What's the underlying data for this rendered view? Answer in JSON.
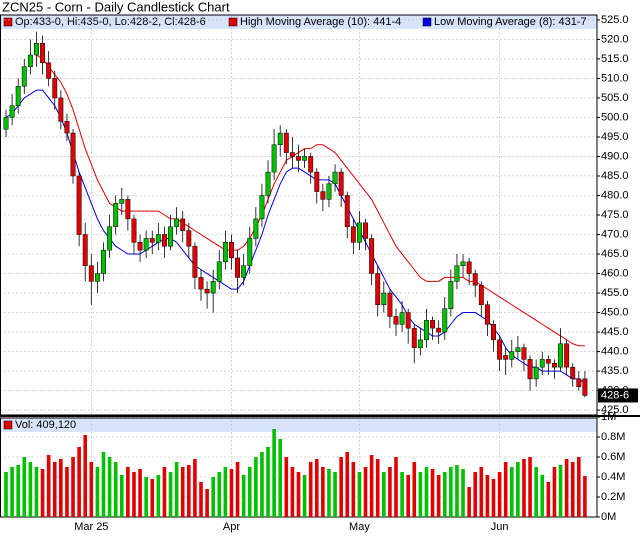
{
  "chart_data": {
    "type": "candlestick",
    "title": "ZCN25 - Corn - Daily Candlestick Chart",
    "ohlc_label": "Op:433-0, Hi:435-0, Lo:428-2, Cl:428-6",
    "last_label": "428-6",
    "up_color": "#00c000",
    "down_color": "#e00000",
    "grid": true,
    "categories": [
      null,
      null,
      null,
      null,
      null,
      null,
      null,
      null,
      null,
      null,
      null,
      null,
      null,
      null,
      "Mar 25",
      null,
      null,
      null,
      null,
      null,
      null,
      null,
      null,
      null,
      null,
      null,
      null,
      null,
      null,
      null,
      null,
      null,
      null,
      null,
      null,
      null,
      null,
      "Apr",
      null,
      null,
      null,
      null,
      null,
      null,
      null,
      null,
      null,
      null,
      null,
      null,
      null,
      null,
      null,
      null,
      null,
      null,
      null,
      null,
      "May",
      null,
      null,
      null,
      null,
      null,
      null,
      null,
      null,
      null,
      null,
      null,
      null,
      null,
      null,
      null,
      null,
      null,
      null,
      null,
      null,
      null,
      null,
      "Jun",
      null,
      null,
      null,
      null,
      null,
      null,
      null,
      null,
      null,
      null,
      null,
      null,
      null,
      null
    ],
    "candles": [
      [
        497,
        502,
        495,
        500
      ],
      [
        500,
        506,
        498,
        503
      ],
      [
        503,
        510,
        501,
        508
      ],
      [
        508,
        515,
        506,
        513
      ],
      [
        513,
        520,
        511,
        516
      ],
      [
        516,
        522,
        513,
        519
      ],
      [
        519,
        521,
        511,
        514
      ],
      [
        514,
        517,
        508,
        510
      ],
      [
        510,
        512,
        502,
        505
      ],
      [
        505,
        507,
        497,
        499
      ],
      [
        499,
        501,
        494,
        496
      ],
      [
        496,
        497,
        483,
        485
      ],
      [
        485,
        486,
        467,
        470
      ],
      [
        470,
        473,
        458,
        462
      ],
      [
        462,
        465,
        452,
        458
      ],
      [
        458,
        463,
        455,
        460
      ],
      [
        460,
        468,
        458,
        466
      ],
      [
        466,
        475,
        464,
        472
      ],
      [
        472,
        480,
        470,
        478
      ],
      [
        478,
        482,
        475,
        479
      ],
      [
        479,
        480,
        471,
        474
      ],
      [
        474,
        475,
        465,
        468
      ],
      [
        468,
        470,
        463,
        466
      ],
      [
        466,
        471,
        464,
        469
      ],
      [
        469,
        471,
        465,
        468
      ],
      [
        468,
        473,
        466,
        470
      ],
      [
        470,
        472,
        464,
        467
      ],
      [
        467,
        475,
        466,
        472
      ],
      [
        472,
        477,
        470,
        474
      ],
      [
        474,
        476,
        468,
        471
      ],
      [
        471,
        473,
        464,
        467
      ],
      [
        467,
        468,
        456,
        459
      ],
      [
        459,
        461,
        453,
        456
      ],
      [
        456,
        458,
        451,
        455
      ],
      [
        455,
        461,
        450,
        458
      ],
      [
        458,
        466,
        456,
        463
      ],
      [
        463,
        471,
        461,
        468
      ],
      [
        468,
        470,
        461,
        464
      ],
      [
        464,
        466,
        455,
        459
      ],
      [
        459,
        465,
        457,
        462
      ],
      [
        462,
        472,
        460,
        469
      ],
      [
        469,
        477,
        467,
        474
      ],
      [
        474,
        483,
        472,
        480
      ],
      [
        480,
        489,
        478,
        486
      ],
      [
        486,
        497,
        484,
        493
      ],
      [
        493,
        498,
        490,
        496
      ],
      [
        496,
        497,
        488,
        491
      ],
      [
        491,
        495,
        487,
        490
      ],
      [
        490,
        493,
        486,
        489
      ],
      [
        489,
        492,
        487,
        490
      ],
      [
        490,
        491,
        483,
        486
      ],
      [
        486,
        487,
        478,
        481
      ],
      [
        481,
        483,
        476,
        479
      ],
      [
        479,
        485,
        477,
        483
      ],
      [
        483,
        488,
        481,
        486
      ],
      [
        486,
        487,
        477,
        480
      ],
      [
        480,
        481,
        469,
        472
      ],
      [
        472,
        474,
        465,
        468
      ],
      [
        468,
        476,
        466,
        473
      ],
      [
        473,
        474,
        466,
        469
      ],
      [
        469,
        470,
        457,
        460
      ],
      [
        460,
        462,
        449,
        452
      ],
      [
        452,
        458,
        450,
        455
      ],
      [
        455,
        456,
        446,
        449
      ],
      [
        449,
        451,
        444,
        447
      ],
      [
        447,
        453,
        445,
        450
      ],
      [
        450,
        451,
        442,
        446
      ],
      [
        446,
        447,
        437,
        441
      ],
      [
        441,
        446,
        439,
        443
      ],
      [
        443,
        451,
        441,
        448
      ],
      [
        448,
        449,
        443,
        446
      ],
      [
        446,
        448,
        442,
        445
      ],
      [
        445,
        454,
        443,
        451
      ],
      [
        451,
        461,
        449,
        458
      ],
      [
        458,
        465,
        456,
        462
      ],
      [
        462,
        465,
        459,
        463
      ],
      [
        463,
        464,
        457,
        460
      ],
      [
        460,
        461,
        454,
        457
      ],
      [
        457,
        458,
        449,
        452
      ],
      [
        452,
        453,
        444,
        447
      ],
      [
        447,
        448,
        440,
        443
      ],
      [
        443,
        444,
        435,
        438
      ],
      [
        439,
        441,
        434,
        438
      ],
      [
        438,
        443,
        436,
        440
      ],
      [
        440,
        444,
        438,
        441
      ],
      [
        441,
        442,
        435,
        438
      ],
      [
        438,
        439,
        430,
        433
      ],
      [
        433,
        438,
        431,
        436
      ],
      [
        436,
        440,
        434,
        438
      ],
      [
        438,
        439,
        434,
        437
      ],
      [
        437,
        438,
        433,
        436
      ],
      [
        436,
        446,
        435,
        442
      ],
      [
        442,
        443,
        434,
        436
      ],
      [
        436,
        437,
        431,
        433
      ],
      [
        433,
        435,
        430,
        431
      ],
      [
        433,
        435,
        428.25,
        428.75
      ]
    ],
    "series": [
      {
        "name": "High Moving Average (10): 441-4",
        "color": "#e00000",
        "values": [
          null,
          null,
          null,
          null,
          null,
          516,
          515,
          513,
          511,
          509,
          506,
          502,
          497,
          492,
          488,
          484,
          481,
          478,
          477,
          476,
          476,
          476,
          476,
          476,
          476,
          476,
          475,
          474,
          474,
          473,
          472,
          471,
          470,
          469,
          468,
          467,
          466,
          466,
          466,
          467,
          469,
          472,
          475,
          479,
          483,
          486,
          489,
          490,
          491,
          492,
          492,
          493,
          493,
          492,
          491,
          489,
          487,
          485,
          483,
          481,
          479,
          476,
          473,
          470,
          467,
          465,
          463,
          461,
          459,
          458,
          458,
          458,
          459,
          459,
          459,
          459,
          458,
          458,
          457,
          456,
          455,
          454,
          453,
          452,
          451,
          450,
          449,
          448,
          447,
          446,
          445,
          444,
          443,
          442,
          441.5,
          441.5
        ]
      },
      {
        "name": "Low Moving Average (8): 431-7",
        "color": "#0000e0",
        "values": [
          500,
          501,
          503,
          505,
          506,
          507,
          507,
          505,
          503,
          500,
          496,
          491,
          486,
          482,
          478,
          474,
          471,
          469,
          467,
          466,
          465,
          465,
          465,
          466,
          467,
          468,
          469,
          469,
          468,
          466,
          464,
          462,
          461,
          460,
          459,
          458,
          457,
          456,
          456,
          458,
          462,
          466,
          470,
          475,
          479,
          483,
          486,
          487,
          487,
          486,
          485,
          484,
          484,
          484,
          483,
          480,
          477,
          474,
          471,
          468,
          465,
          462,
          459,
          456,
          454,
          452,
          449,
          447,
          446,
          445,
          444,
          444,
          445,
          447,
          449,
          450,
          450,
          450,
          449,
          448,
          446,
          444,
          441,
          439,
          438,
          437,
          436,
          436,
          435,
          435,
          435,
          435,
          434,
          433,
          433,
          431.875
        ]
      }
    ],
    "ylim": [
      424,
      526
    ],
    "yticks": [
      {
        "value": 425,
        "label": "425.0"
      },
      {
        "value": 430,
        "label": "430.0"
      },
      {
        "value": 435,
        "label": "435.0"
      },
      {
        "value": 440,
        "label": "440.0"
      },
      {
        "value": 445,
        "label": "445.0"
      },
      {
        "value": 450,
        "label": "450.0"
      },
      {
        "value": 455,
        "label": "455.0"
      },
      {
        "value": 460,
        "label": "460.0"
      },
      {
        "value": 465,
        "label": "465.0"
      },
      {
        "value": 470,
        "label": "470.0"
      },
      {
        "value": 475,
        "label": "475.0"
      },
      {
        "value": 480,
        "label": "480.0"
      },
      {
        "value": 485,
        "label": "485.0"
      },
      {
        "value": 490,
        "label": "490.0"
      },
      {
        "value": 495,
        "label": "495.0"
      },
      {
        "value": 500,
        "label": "500.0"
      },
      {
        "value": 505,
        "label": "505.0"
      },
      {
        "value": 510,
        "label": "510.0"
      },
      {
        "value": 515,
        "label": "515.0"
      },
      {
        "value": 520,
        "label": "520.0"
      },
      {
        "value": 525,
        "label": "525.0"
      }
    ],
    "volume": {
      "label": "Vol: 409,120",
      "ylim": [
        0,
        1.01
      ],
      "yticks": [
        {
          "value": 0,
          "label": "0M"
        },
        {
          "value": 0.2,
          "label": "0.2M"
        },
        {
          "value": 0.4,
          "label": "0.4M"
        },
        {
          "value": 0.6,
          "label": "0.6M"
        },
        {
          "value": 0.8,
          "label": "0.8M"
        },
        {
          "value": 1,
          "label": "1M"
        }
      ],
      "values": [
        0.45,
        0.5,
        0.52,
        0.6,
        0.55,
        0.5,
        0.48,
        0.62,
        0.55,
        0.58,
        0.5,
        0.6,
        0.7,
        0.82,
        0.55,
        0.5,
        0.65,
        0.6,
        0.55,
        0.42,
        0.5,
        0.45,
        0.48,
        0.4,
        0.38,
        0.42,
        0.5,
        0.45,
        0.55,
        0.5,
        0.52,
        0.58,
        0.35,
        0.28,
        0.4,
        0.45,
        0.5,
        0.48,
        0.55,
        0.42,
        0.5,
        0.6,
        0.65,
        0.7,
        0.88,
        0.78,
        0.6,
        0.5,
        0.45,
        0.42,
        0.55,
        0.58,
        0.5,
        0.48,
        0.45,
        0.6,
        0.65,
        0.55,
        0.45,
        0.5,
        0.62,
        0.58,
        0.45,
        0.5,
        0.6,
        0.45,
        0.42,
        0.55,
        0.45,
        0.5,
        0.48,
        0.42,
        0.45,
        0.5,
        0.52,
        0.48,
        0.3,
        0.45,
        0.5,
        0.42,
        0.38,
        0.45,
        0.55,
        0.5,
        0.55,
        0.58,
        0.6,
        0.5,
        0.42,
        0.35,
        0.5,
        0.52,
        0.58,
        0.55,
        0.6,
        0.40912
      ]
    }
  }
}
